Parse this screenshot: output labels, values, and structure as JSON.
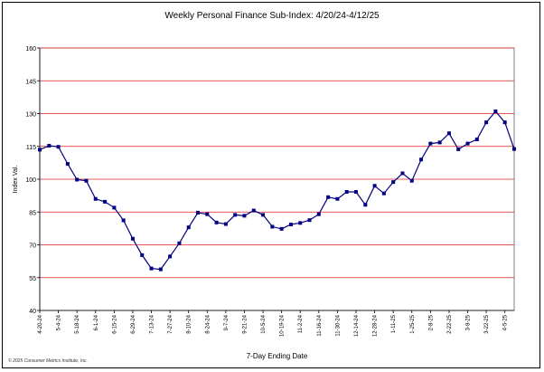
{
  "chart_data": {
    "type": "line",
    "title": "Weekly Personal Finance Sub-Index: 4/20/24-4/12/25",
    "xlabel": "7-Day Ending Date",
    "ylabel": "Index Val.",
    "ylim": [
      40,
      160
    ],
    "yticks": [
      40,
      55,
      70,
      85,
      100,
      115,
      130,
      145,
      160
    ],
    "grid": true,
    "legend": "none",
    "colors": {
      "line": "#000080",
      "grid": "#e02020",
      "plot_border": "#808080"
    },
    "x": [
      "4-20-24",
      "4-27-24",
      "5-4-24",
      "5-11-24",
      "5-18-24",
      "5-25-24",
      "6-1-24",
      "6-8-24",
      "6-15-24",
      "6-22-24",
      "6-29-24",
      "7-6-24",
      "7-13-24",
      "7-20-24",
      "7-27-24",
      "8-3-24",
      "8-10-24",
      "8-17-24",
      "8-24-24",
      "8-31-24",
      "9-7-24",
      "9-14-24",
      "9-21-24",
      "9-28-24",
      "10-5-24",
      "10-12-24",
      "10-19-24",
      "10-26-24",
      "11-2-24",
      "11-9-24",
      "11-16-24",
      "11-23-24",
      "11-30-24",
      "12-7-24",
      "12-14-24",
      "12-21-24",
      "12-28-24",
      "1-4-25",
      "1-11-25",
      "1-18-25",
      "1-25-25",
      "2-1-25",
      "2-8-25",
      "2-15-25",
      "2-22-25",
      "3-1-25",
      "3-8-25",
      "3-15-25",
      "3-22-25",
      "3-29-25",
      "4-5-25",
      "4-12-25"
    ],
    "xtick_labels": [
      "4-20-24",
      "5-4-24",
      "5-18-24",
      "6-1-24",
      "6-15-24",
      "6-29-24",
      "7-13-24",
      "7-27-24",
      "8-10-24",
      "8-24-24",
      "9-7-24",
      "9-21-24",
      "10-5-24",
      "10-19-24",
      "11-2-24",
      "11-16-24",
      "11-30-24",
      "12-14-24",
      "12-28-24",
      "1-11-25",
      "1-25-25",
      "2-8-25",
      "2-22-25",
      "3-8-25",
      "3-22-25",
      "4-5-25"
    ],
    "series": [
      {
        "values": [
          113.5,
          115.3,
          114.8,
          107,
          99.8,
          99.3,
          91,
          89.7,
          87,
          81.2,
          72.8,
          65.3,
          59.2,
          58.8,
          64.7,
          70.7,
          78,
          84.7,
          84,
          80.2,
          79.5,
          83.7,
          83.3,
          85.7,
          83.7,
          78.3,
          77.3,
          79.3,
          80,
          81.3,
          84,
          91.8,
          91,
          94.2,
          94.2,
          88.3,
          97,
          93.5,
          98.7,
          102.7,
          99.3,
          109,
          116.3,
          116.8,
          121,
          113.7,
          116.3,
          118.2,
          126,
          131,
          126,
          113.8
        ]
      }
    ]
  },
  "footer": {
    "copyright": "© 2025 Consumer Metrics Institute, Inc."
  }
}
